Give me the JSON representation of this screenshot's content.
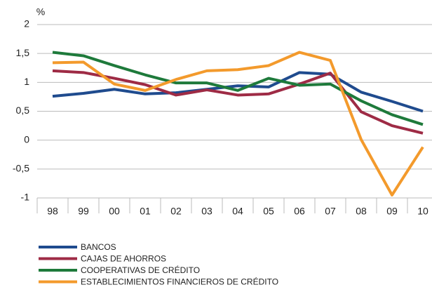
{
  "chart_data": {
    "type": "line",
    "y_label": "%",
    "categories": [
      "98",
      "99",
      "00",
      "01",
      "02",
      "03",
      "04",
      "05",
      "06",
      "07",
      "08",
      "09",
      "10"
    ],
    "series": [
      {
        "name": "BANCOS",
        "color": "#1f4b8e",
        "values": [
          0.76,
          0.81,
          0.88,
          0.8,
          0.82,
          0.88,
          0.94,
          0.92,
          1.17,
          1.14,
          0.83,
          0.67,
          0.5
        ]
      },
      {
        "name": "CAJAS DE AHORROS",
        "color": "#9e2b45",
        "values": [
          1.2,
          1.17,
          1.07,
          0.96,
          0.78,
          0.87,
          0.78,
          0.8,
          0.97,
          1.16,
          0.49,
          0.25,
          0.12
        ]
      },
      {
        "name": "COOPERATIVAS DE CRÉDITO",
        "color": "#1e7a3b",
        "values": [
          1.52,
          1.46,
          1.29,
          1.13,
          0.99,
          0.99,
          0.86,
          1.07,
          0.95,
          0.97,
          0.68,
          0.44,
          0.27
        ]
      },
      {
        "name": "ESTABLECIMIENTOS FINANCIEROS DE CRÉDITO",
        "color": "#f39a2c",
        "values": [
          1.34,
          1.35,
          0.97,
          0.86,
          1.05,
          1.2,
          1.22,
          1.29,
          1.52,
          1.38,
          0.01,
          -0.95,
          -0.12
        ]
      }
    ],
    "ylim": [
      -1,
      2
    ],
    "yticks": [
      -1,
      {
        "value": -0.5,
        "label": "-0,5"
      },
      0,
      {
        "value": 0.5,
        "label": "0,5"
      },
      1,
      {
        "value": 1.5,
        "label": "1,5"
      },
      2
    ],
    "grid": true
  }
}
